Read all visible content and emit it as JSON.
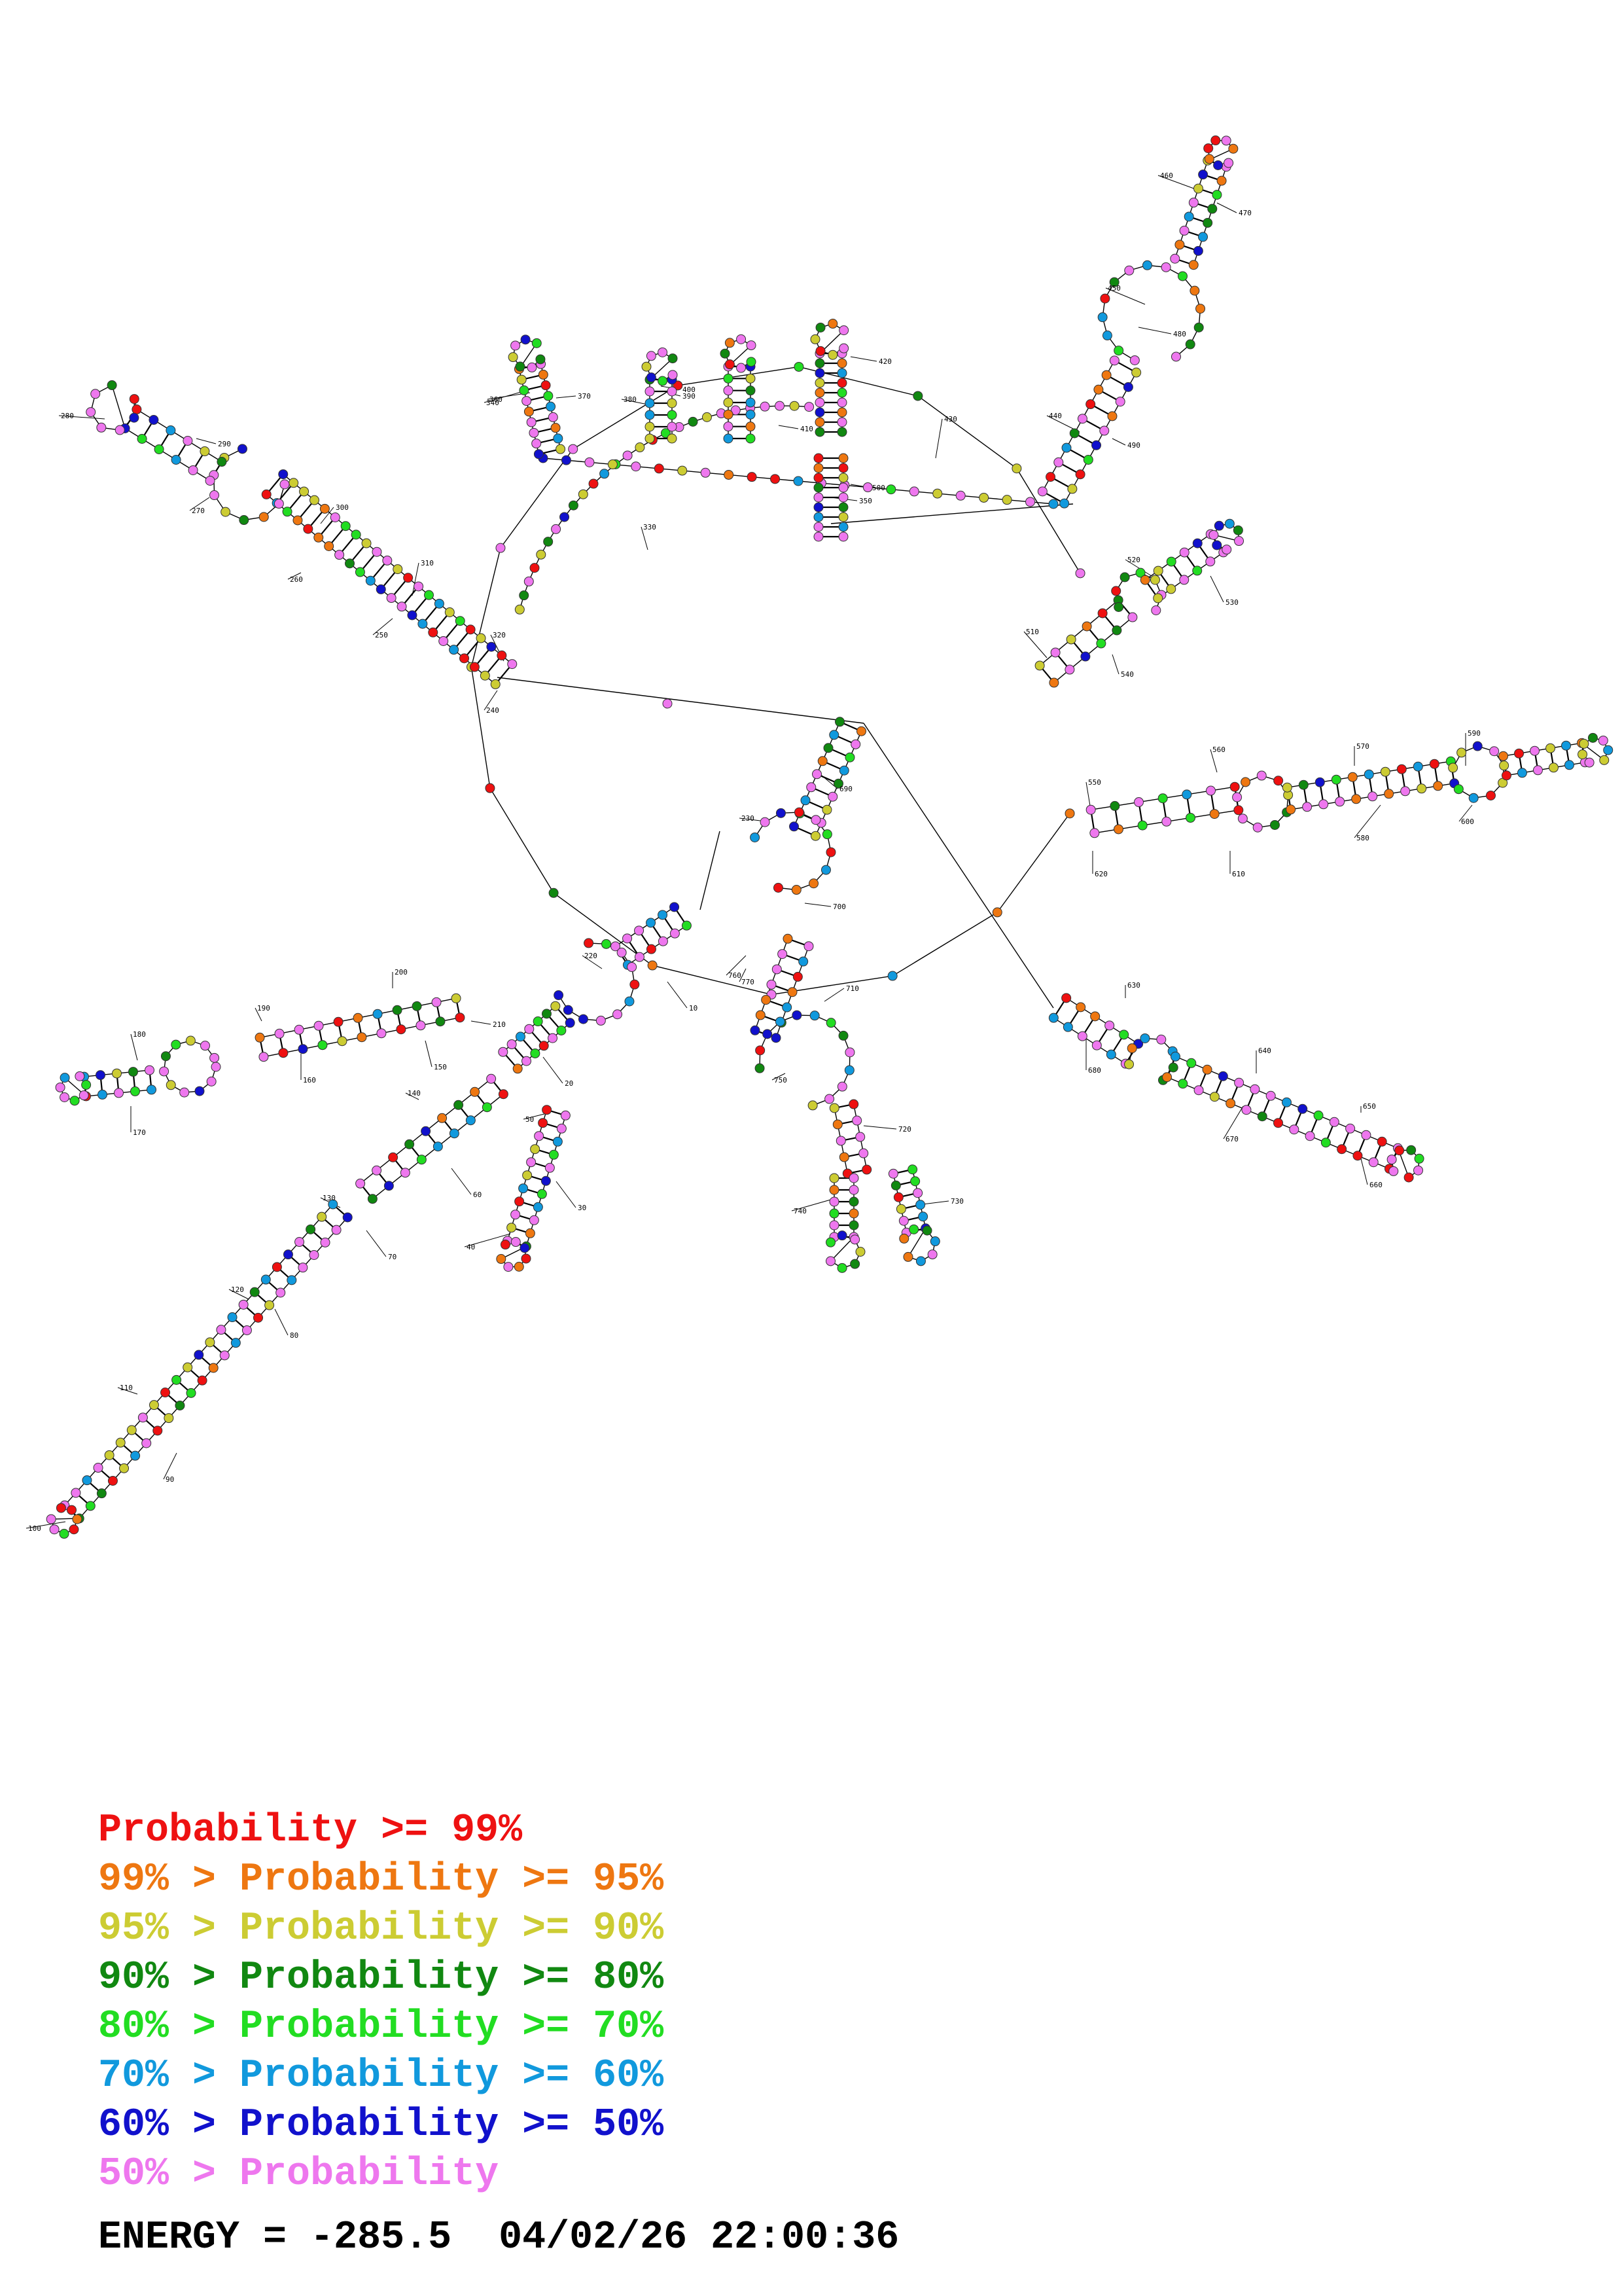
{
  "colors": {
    "p99": "#ee1111",
    "p95": "#ee7711",
    "p90": "#cccc33",
    "p80": "#118811",
    "p70": "#22dd22",
    "p60": "#1199dd",
    "p50": "#1111cc",
    "plt50": "#ee77ee"
  },
  "numbering": [
    "10",
    "20",
    "30",
    "40",
    "50",
    "60",
    "70",
    "80",
    "90",
    "100",
    "110",
    "120",
    "130",
    "140",
    "150",
    "160",
    "170",
    "180",
    "190",
    "200",
    "210",
    "220",
    "230",
    "240",
    "250",
    "260",
    "270",
    "280",
    "290",
    "300",
    "310",
    "320",
    "330",
    "340",
    "350",
    "360",
    "370",
    "380",
    "390",
    "400",
    "410",
    "420",
    "430",
    "440",
    "450",
    "460",
    "470",
    "480",
    "490",
    "500",
    "510",
    "520",
    "530",
    "540",
    "550",
    "560",
    "570",
    "580",
    "590",
    "600",
    "610",
    "620",
    "630",
    "640",
    "650",
    "660",
    "670",
    "680",
    "690",
    "700",
    "710",
    "720",
    "730",
    "740",
    "750",
    "760",
    "770",
    "780",
    "790",
    "800",
    "810"
  ],
  "legend": [
    {
      "prefix": "",
      "text": "Probability >= 99%",
      "color": "#ee1111"
    },
    {
      "prefix": "99% > ",
      "text": "Probability >= 95%",
      "color": "#ee7711"
    },
    {
      "prefix": "95% > ",
      "text": "Probability >= 90%",
      "color": "#cccc33"
    },
    {
      "prefix": "90% > ",
      "text": "Probability >= 80%",
      "color": "#118811"
    },
    {
      "prefix": "80% > ",
      "text": "Probability >= 70%",
      "color": "#22dd22"
    },
    {
      "prefix": "70% > ",
      "text": "Probability >= 60%",
      "color": "#1199dd"
    },
    {
      "prefix": "60% > ",
      "text": "Probability >= 50%",
      "color": "#1111cc"
    },
    {
      "prefix": "50% > ",
      "text": "Probability",
      "color": "#ee77ee"
    }
  ],
  "energy_line": "ENERGY = -285.5  04/02/26 22:00:36"
}
